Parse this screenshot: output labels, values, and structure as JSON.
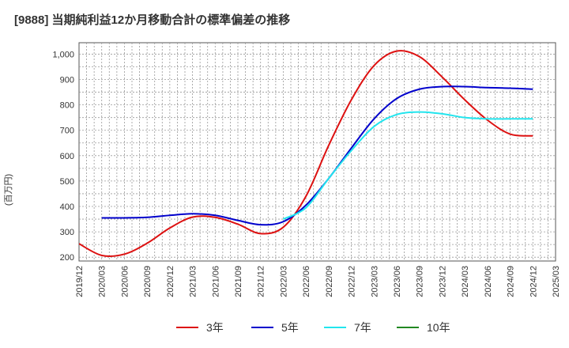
{
  "chart_data": {
    "type": "line",
    "title": "[9888]  当期純利益12か月移動合計の標準偏差の推移",
    "ylabel": "(百万円)",
    "xlabel": "",
    "ylim": [
      185,
      1045
    ],
    "yticks": [
      200,
      300,
      400,
      500,
      600,
      700,
      800,
      900,
      1000
    ],
    "ytick_labels": [
      "200",
      "300",
      "400",
      "500",
      "600",
      "700",
      "800",
      "900",
      "1,000"
    ],
    "xticks": [
      "2019/12",
      "2020/03",
      "2020/06",
      "2020/09",
      "2020/12",
      "2021/03",
      "2021/06",
      "2021/09",
      "2021/12",
      "2022/03",
      "2022/06",
      "2022/09",
      "2022/12",
      "2023/03",
      "2023/06",
      "2023/09",
      "2023/12",
      "2024/03",
      "2024/06",
      "2024/09",
      "2024/12",
      "2025/03"
    ],
    "grid": true,
    "legend_position": "bottom",
    "series": [
      {
        "name": "3年",
        "color": "#dd1111",
        "x": [
          "2019/12",
          "2020/03",
          "2020/06",
          "2020/09",
          "2020/12",
          "2021/03",
          "2021/06",
          "2021/09",
          "2021/12",
          "2022/03",
          "2022/06",
          "2022/09",
          "2022/12",
          "2023/03",
          "2023/06",
          "2023/09",
          "2023/12",
          "2024/03",
          "2024/06",
          "2024/09",
          "2024/12"
        ],
        "values": [
          253,
          207,
          212,
          255,
          315,
          358,
          357,
          330,
          293,
          318,
          440,
          640,
          820,
          955,
          1012,
          990,
          910,
          820,
          740,
          685,
          678
        ]
      },
      {
        "name": "5年",
        "color": "#0000cc",
        "x": [
          "2020/03",
          "2020/06",
          "2020/09",
          "2020/12",
          "2021/03",
          "2021/06",
          "2021/09",
          "2021/12",
          "2022/03",
          "2022/06",
          "2022/09",
          "2022/12",
          "2023/03",
          "2023/06",
          "2023/09",
          "2023/12",
          "2024/03",
          "2024/06",
          "2024/09",
          "2024/12"
        ],
        "values": [
          355,
          355,
          357,
          365,
          371,
          365,
          345,
          328,
          340,
          405,
          510,
          630,
          745,
          825,
          862,
          872,
          872,
          868,
          866,
          862
        ]
      },
      {
        "name": "7年",
        "color": "#22e5ee",
        "x": [
          "2022/03",
          "2022/06",
          "2022/09",
          "2022/12",
          "2023/03",
          "2023/06",
          "2023/09",
          "2023/12",
          "2024/03",
          "2024/06",
          "2024/09",
          "2024/12"
        ],
        "values": [
          350,
          395,
          510,
          620,
          715,
          762,
          772,
          765,
          750,
          745,
          745,
          745
        ]
      },
      {
        "name": "10年",
        "color": "#228822",
        "x": [],
        "values": []
      }
    ]
  }
}
